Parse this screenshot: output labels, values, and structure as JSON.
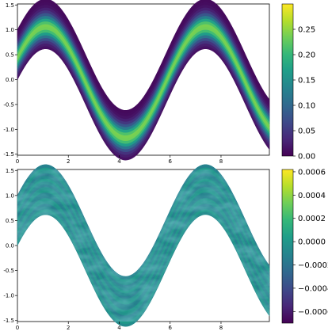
{
  "chart_data": [
    {
      "type": "heatmap",
      "description_band": "band around y = sin(x) + 0.5*cos(x), half-width 0.5",
      "x": [
        0,
        0.5,
        1,
        1.5,
        2,
        2.5,
        3,
        3.5,
        4,
        4.5,
        5,
        5.5,
        6,
        6.5,
        7,
        7.5,
        8,
        8.5,
        9,
        9.5,
        9.9
      ],
      "center": [
        0.5,
        0.9,
        1.11,
        1.03,
        0.7,
        0.2,
        -0.35,
        -0.82,
        -1.08,
        -1.1,
        -0.84,
        -0.4,
        0.2,
        0.8,
        1.13,
        1.07,
        0.71,
        0.14,
        -0.4,
        -0.86,
        -1.08
      ],
      "xlim": [
        0,
        9.9
      ],
      "ylim": [
        -1.52,
        1.52
      ],
      "xticks": [
        "0",
        "2",
        "4",
        "6",
        "8"
      ],
      "yticks": [
        "-1.5",
        "-1.0",
        "-0.5",
        "0.0",
        "0.5",
        "1.0",
        "1.5"
      ],
      "colormap": "viridis",
      "colorbar": {
        "vmin": 0,
        "vmax": 0.3,
        "ticks": [
          "0.00",
          "0.05",
          "0.10",
          "0.15",
          "0.20",
          "0.25"
        ]
      }
    },
    {
      "type": "heatmap",
      "xlim": [
        0,
        9.9
      ],
      "ylim": [
        -1.52,
        1.52
      ],
      "xticks": [
        "0",
        "2",
        "4",
        "6",
        "8"
      ],
      "yticks": [
        "-1.5",
        "-1.0",
        "-0.5",
        "0.0",
        "0.5",
        "1.0",
        "1.5"
      ],
      "colormap": "viridis",
      "colorbar": {
        "vmin": -0.0007,
        "vmax": 0.00062,
        "ticks": [
          "0.0006",
          "0.0004",
          "0.0002",
          "0.0000",
          "−0.0002",
          "−0.0004",
          "−0.0006"
        ]
      }
    }
  ],
  "colors": {
    "viridis": [
      "#440154",
      "#482878",
      "#3e4989",
      "#31688e",
      "#26828e",
      "#1f9e89",
      "#35b779",
      "#6ece58",
      "#b5de2b",
      "#fde725"
    ]
  }
}
